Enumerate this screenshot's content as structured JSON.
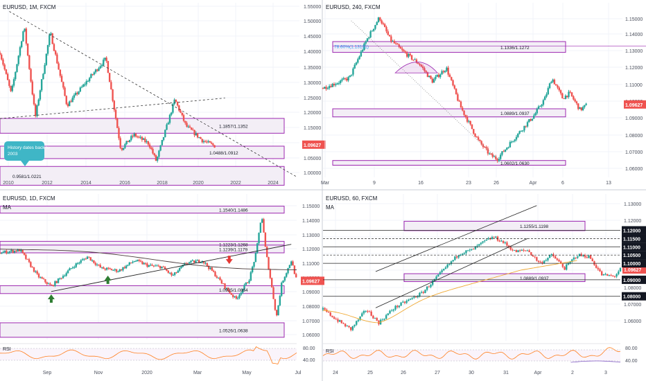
{
  "colors": {
    "up": "#26a69a",
    "down": "#ef5350",
    "zone": "#9c27b0",
    "zone_fill": "#f3eef6",
    "price_badge": "#ef5350",
    "grid": "#f0f3fa",
    "text": "#131722",
    "axis_text": "#4a4f5c",
    "ma_dark": "#4a3b3b",
    "ma_orange": "#f0a830",
    "rsi": "#ff7f1e",
    "callout": "#3fb6c6"
  },
  "chart_data": [
    {
      "id": "p1",
      "type": "candlestick",
      "title": "EURUSD, 1M, FXCM",
      "x_ticks": [
        "2010",
        "2012",
        "2014",
        "2016",
        "2018",
        "2020",
        "2022",
        "2024"
      ],
      "y_ticks": [
        "1.55000",
        "1.50000",
        "1.45000",
        "1.40000",
        "1.35000",
        "1.30000",
        "1.25000",
        "1.20000",
        "1.15000",
        "1.10000",
        "1.05000",
        "1.00000"
      ],
      "ylim": [
        0.985,
        1.57
      ],
      "price": "1.09627",
      "zones": [
        {
          "label": "1.1857/1.1352",
          "y1": 1.1857,
          "y2": 1.1352
        },
        {
          "label": "1.0488/1.0912",
          "y1": 1.0912,
          "y2": 1.0488
        },
        {
          "label": "0.9581/1.0221",
          "y1": 1.0221,
          "y2": 0.9581
        }
      ],
      "callout": "History dates back to 2003",
      "path": [
        [
          2008.6,
          1.41
        ],
        [
          2009.2,
          1.27
        ],
        [
          2009.9,
          1.5
        ],
        [
          2010.5,
          1.19
        ],
        [
          2011.3,
          1.48
        ],
        [
          2012.2,
          1.23
        ],
        [
          2013.5,
          1.33
        ],
        [
          2014.3,
          1.39
        ],
        [
          2015.1,
          1.08
        ],
        [
          2015.8,
          1.13
        ],
        [
          2016.6,
          1.1
        ],
        [
          2017.0,
          1.04
        ],
        [
          2018.0,
          1.25
        ],
        [
          2018.6,
          1.16
        ],
        [
          2019.5,
          1.11
        ],
        [
          2020.2,
          1.09
        ]
      ]
    },
    {
      "id": "p2",
      "type": "candlestick",
      "title": "EURUSD, 240, FXCM",
      "x_ticks": [
        "Mar",
        "9",
        "16",
        "23",
        "26",
        "Apr",
        "6",
        "13"
      ],
      "y_ticks": [
        "1.15000",
        "1.14000",
        "1.13000",
        "1.12000",
        "1.11000",
        "1.10000",
        "1.09000",
        "1.08000",
        "1.07000",
        "1.06000"
      ],
      "ylim": [
        1.053,
        1.155
      ],
      "price": "1.09627",
      "fib_label": "78.60%(1.13101)",
      "zones": [
        {
          "label": "1.1336/1.1272",
          "y1": 1.1336,
          "y2": 1.1272
        },
        {
          "label": "1.0889/1.0937",
          "y1": 1.0937,
          "y2": 1.0889
        },
        {
          "label": "1.0602/1.0630",
          "y1": 1.063,
          "y2": 1.0602
        }
      ],
      "path": [
        [
          -1.0,
          1.106
        ],
        [
          0.5,
          1.112
        ],
        [
          1.5,
          1.135
        ],
        [
          2.2,
          1.148
        ],
        [
          2.8,
          1.135
        ],
        [
          3.5,
          1.128
        ],
        [
          4.5,
          1.12
        ],
        [
          5.2,
          1.11
        ],
        [
          6.0,
          1.118
        ],
        [
          6.8,
          1.095
        ],
        [
          7.8,
          1.075
        ],
        [
          8.5,
          1.066
        ],
        [
          8.9,
          1.064
        ],
        [
          10.0,
          1.078
        ],
        [
          11.0,
          1.09
        ],
        [
          11.6,
          1.1
        ],
        [
          12.0,
          1.112
        ],
        [
          12.6,
          1.1
        ],
        [
          13.0,
          1.103
        ],
        [
          13.6,
          1.093
        ],
        [
          14.0,
          1.0963
        ]
      ]
    },
    {
      "id": "p3",
      "type": "candlestick",
      "title": "EURUSD, 1D, FXCM",
      "ma_label": "MA",
      "x_ticks": [
        "Sep",
        "Nov",
        "2020",
        "Mar",
        "May",
        "Jul"
      ],
      "y_ticks": [
        "1.15000",
        "1.14000",
        "1.13000",
        "1.12000",
        "1.11000",
        "1.10000",
        "1.09000",
        "1.08000",
        "1.07000",
        "1.06000"
      ],
      "ylim": [
        1.052,
        1.157
      ],
      "price": "1.09627",
      "zones": [
        {
          "label": "1.1540/1.1486",
          "y1": 1.154,
          "y2": 1.1486
        },
        {
          "label": "1.1223/1.1268",
          "y1": 1.1268,
          "y2": 1.1223
        },
        {
          "label": "1.1239/1.1179",
          "y1": 1.1239,
          "y2": 1.1179
        },
        {
          "label": "1.0925/1.0864",
          "y1": 1.0925,
          "y2": 1.0864
        },
        {
          "label": "1.0526/1.0638",
          "y1": 1.0638,
          "y2": 1.0526
        }
      ],
      "rsi_label": "RSI",
      "rsi_ticks": [
        "80.00",
        "40.00"
      ],
      "path": [
        [
          -20,
          1.118
        ],
        [
          -5,
          1.12
        ],
        [
          8,
          1.1
        ],
        [
          18,
          1.092
        ],
        [
          35,
          1.108
        ],
        [
          45,
          1.115
        ],
        [
          55,
          1.106
        ],
        [
          68,
          1.104
        ],
        [
          80,
          1.112
        ],
        [
          90,
          1.108
        ],
        [
          100,
          1.107
        ],
        [
          108,
          1.1
        ],
        [
          118,
          1.11
        ],
        [
          130,
          1.112
        ],
        [
          138,
          1.103
        ],
        [
          148,
          1.09
        ],
        [
          155,
          1.082
        ],
        [
          165,
          1.098
        ],
        [
          170,
          1.118
        ],
        [
          174,
          1.148
        ],
        [
          177,
          1.12
        ],
        [
          181,
          1.095
        ],
        [
          185,
          1.068
        ],
        [
          189,
          1.095
        ],
        [
          192,
          1.102
        ],
        [
          196,
          1.112
        ],
        [
          200,
          1.0963
        ]
      ]
    },
    {
      "id": "p4",
      "type": "candlestick",
      "title": "EURUSD, 60, FXCM",
      "ma_label": "MA",
      "x_ticks": [
        "24",
        "25",
        "26",
        "27",
        "30",
        "31",
        "Apr",
        "2",
        "3"
      ],
      "y_ticks": [
        "1.13000",
        "1.12000",
        "1.11000",
        "1.10000",
        "1.09000",
        "1.08000",
        "1.07000",
        "1.06000"
      ],
      "ylim": [
        1.053,
        1.137
      ],
      "levels": [
        "1.12000",
        "1.11500",
        "1.11000",
        "1.10500",
        "1.10000",
        "1.09000",
        "1.08000"
      ],
      "price": "1.09627",
      "zones": [
        {
          "label": "1.1255/1.1198",
          "y1": 1.1255,
          "y2": 1.1198
        },
        {
          "label": "1.0889/1.0937",
          "y1": 1.0937,
          "y2": 1.0889
        }
      ],
      "rsi_label": "RSI",
      "rsi_ticks": [
        "80.00",
        "40.00"
      ],
      "path": [
        [
          -0.8,
          1.072
        ],
        [
          -0.3,
          1.065
        ],
        [
          0.1,
          1.06
        ],
        [
          0.6,
          1.072
        ],
        [
          1.0,
          1.064
        ],
        [
          1.5,
          1.073
        ],
        [
          2.0,
          1.078
        ],
        [
          2.4,
          1.082
        ],
        [
          2.8,
          1.09
        ],
        [
          3.2,
          1.098
        ],
        [
          3.6,
          1.106
        ],
        [
          4.0,
          1.108
        ],
        [
          4.4,
          1.113
        ],
        [
          4.7,
          1.116
        ],
        [
          5.0,
          1.113
        ],
        [
          5.4,
          1.107
        ],
        [
          5.8,
          1.108
        ],
        [
          6.2,
          1.1
        ],
        [
          6.6,
          1.105
        ],
        [
          7.0,
          1.097
        ],
        [
          7.4,
          1.105
        ],
        [
          7.8,
          1.104
        ],
        [
          8.2,
          1.093
        ],
        [
          8.6,
          1.092
        ],
        [
          8.8,
          1.0963
        ]
      ]
    }
  ]
}
